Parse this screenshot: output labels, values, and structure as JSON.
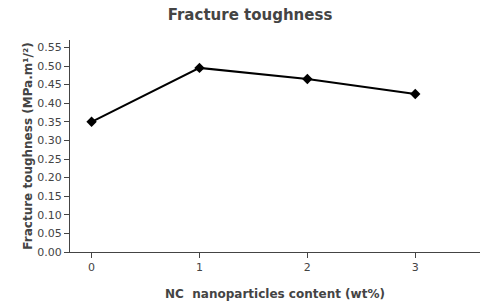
{
  "chart_data": {
    "type": "line",
    "title": "Fracture toughness",
    "xlabel": "NC  nanoparticles content (wt%)",
    "ylabel": "Fracture toughness (MPa.m¹/²)",
    "x": [
      0,
      1,
      2,
      3
    ],
    "values": [
      0.35,
      0.495,
      0.465,
      0.425
    ],
    "color": "#000000",
    "marker": "diamond",
    "xlim": [
      -0.2,
      3.6
    ],
    "ylim": [
      0.0,
      0.57
    ],
    "xticks": [
      0,
      1,
      2,
      3
    ],
    "yticks": [
      {
        "value": 0.0,
        "label": "0.00"
      },
      0.05,
      {
        "value": 0.1,
        "label": "0.10"
      },
      0.15,
      {
        "value": 0.2,
        "label": "0.20"
      },
      0.25,
      {
        "value": 0.3,
        "label": "0.30"
      },
      0.35,
      {
        "value": 0.4,
        "label": "0.40"
      },
      0.45,
      {
        "value": 0.5,
        "label": "0.50"
      },
      0.55
    ],
    "grid": false
  }
}
